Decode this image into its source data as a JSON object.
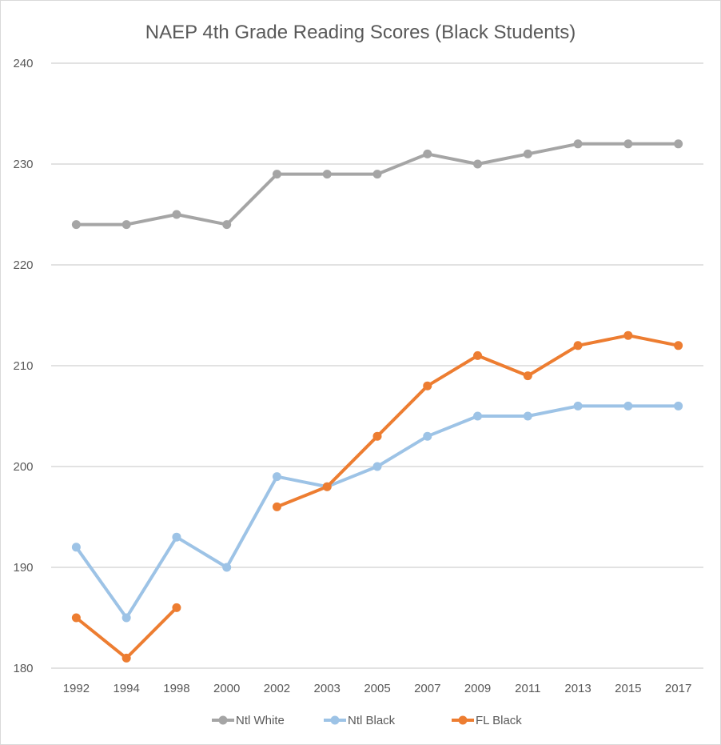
{
  "chart_data": {
    "type": "line",
    "title": "NAEP 4th Grade Reading Scores (Black Students)",
    "xlabel": "",
    "ylabel": "",
    "ylim": [
      180,
      240
    ],
    "yticks": [
      180,
      190,
      200,
      210,
      220,
      230,
      240
    ],
    "grid": true,
    "legend_position": "bottom",
    "categories": [
      "1992",
      "1994",
      "1998",
      "2000",
      "2002",
      "2003",
      "2005",
      "2007",
      "2009",
      "2011",
      "2013",
      "2015",
      "2017"
    ],
    "series": [
      {
        "name": "Ntl White",
        "color": "#a5a5a5",
        "values": [
          224,
          224,
          225,
          224,
          229,
          229,
          229,
          231,
          230,
          231,
          232,
          232,
          232
        ]
      },
      {
        "name": "Ntl Black",
        "color": "#9dc3e6",
        "values": [
          192,
          185,
          193,
          190,
          199,
          198,
          200,
          203,
          205,
          205,
          206,
          206,
          206
        ]
      },
      {
        "name": "FL Black",
        "color": "#ed7d31",
        "values": [
          185,
          181,
          186,
          null,
          196,
          198,
          203,
          208,
          211,
          209,
          212,
          213,
          212
        ]
      }
    ]
  }
}
